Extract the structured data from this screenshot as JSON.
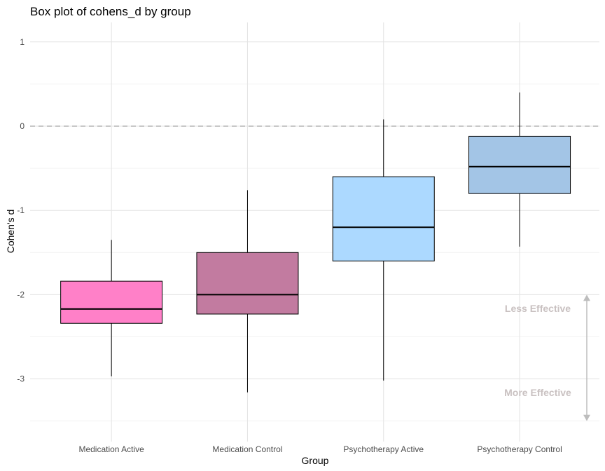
{
  "chart_data": {
    "type": "box",
    "title": "Box plot of cohens_d by group",
    "xlabel": "Group",
    "ylabel": "Cohen's d",
    "ylim": [
      -3.5,
      1.0
    ],
    "y_ticks": [
      1,
      0,
      -1,
      -2,
      -3
    ],
    "y_tick_labels": [
      "1",
      "0",
      "-1",
      "-2",
      "-3"
    ],
    "grid": true,
    "reference_line": {
      "y": 0,
      "style": "dashed"
    },
    "categories": [
      "Medication Active",
      "Medication Control",
      "Psychotherapy Active",
      "Psychotherapy Control"
    ],
    "boxes": [
      {
        "name": "Medication Active",
        "whisker_low": -2.97,
        "q1": -2.34,
        "median": -2.17,
        "q3": -1.84,
        "whisker_high": -1.35,
        "color": "#ff80c8"
      },
      {
        "name": "Medication Control",
        "whisker_low": -3.16,
        "q1": -2.23,
        "median": -2.0,
        "q3": -1.5,
        "whisker_high": -0.76,
        "color": "#c27ba0"
      },
      {
        "name": "Psychotherapy Active",
        "whisker_low": -3.02,
        "q1": -1.6,
        "median": -1.2,
        "q3": -0.6,
        "whisker_high": 0.08,
        "color": "#acd9ff"
      },
      {
        "name": "Psychotherapy Control",
        "whisker_low": -1.43,
        "q1": -0.8,
        "median": -0.48,
        "q3": -0.12,
        "whisker_high": 0.4,
        "color": "#a3c5e6"
      }
    ],
    "annotations": [
      {
        "text": "Less Effective",
        "y": -2.17
      },
      {
        "text": "More Effective",
        "y": -3.17
      }
    ],
    "arrow": {
      "y_from": -2.0,
      "y_to": -3.5,
      "mid_gap": [
        -2.5,
        -2.5
      ],
      "color": "#bdbdbd"
    }
  }
}
